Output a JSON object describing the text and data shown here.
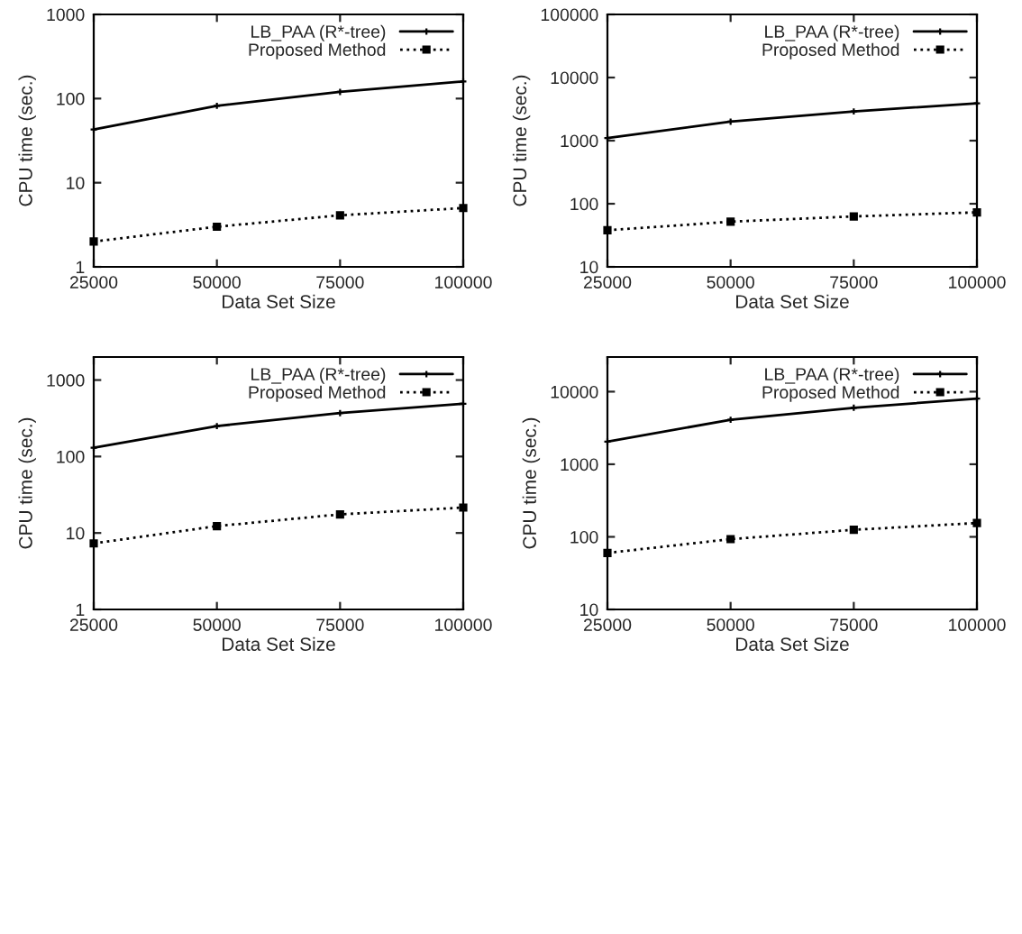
{
  "chart_data": [
    {
      "type": "line",
      "xlabel": "Data Set Size",
      "ylabel": "CPU time (sec.)",
      "x": [
        25000,
        50000,
        75000,
        100000
      ],
      "xlim": [
        25000,
        100000
      ],
      "xticks": [
        25000,
        50000,
        75000,
        100000
      ],
      "ylim": [
        1,
        1000
      ],
      "yticks": [
        1,
        10,
        100,
        1000
      ],
      "log": "y",
      "grid": false,
      "legend": "top right",
      "series": [
        {
          "name": "LB_PAA (R*-tree)",
          "color": "#000000",
          "marker": "cross",
          "line_style": "solid",
          "values": [
            43,
            82,
            120,
            160
          ]
        },
        {
          "name": "Proposed Method",
          "color": "#000000",
          "marker": "square",
          "line_style": "dotted",
          "values": [
            2.0,
            3.0,
            4.1,
            5.0
          ]
        }
      ]
    },
    {
      "type": "line",
      "xlabel": "Data Set Size",
      "ylabel": "CPU time (sec.)",
      "x": [
        25000,
        50000,
        75000,
        100000
      ],
      "xlim": [
        25000,
        100000
      ],
      "xticks": [
        25000,
        50000,
        75000,
        100000
      ],
      "ylim": [
        10,
        100000
      ],
      "yticks": [
        10,
        100,
        1000,
        10000,
        100000
      ],
      "log": "y",
      "grid": false,
      "legend": "top right",
      "series": [
        {
          "name": "LB_PAA (R*-tree)",
          "color": "#000000",
          "marker": "cross",
          "line_style": "solid",
          "values": [
            1100,
            2000,
            2900,
            3900
          ]
        },
        {
          "name": "Proposed Method",
          "color": "#000000",
          "marker": "square",
          "line_style": "dotted",
          "values": [
            38,
            52,
            63,
            73
          ]
        }
      ]
    },
    {
      "type": "line",
      "xlabel": "Data Set Size",
      "ylabel": "CPU time (sec.)",
      "x": [
        25000,
        50000,
        75000,
        100000
      ],
      "xlim": [
        25000,
        100000
      ],
      "xticks": [
        25000,
        50000,
        75000,
        100000
      ],
      "ylim": [
        1,
        2000
      ],
      "yticks": [
        1,
        10,
        100,
        1000
      ],
      "log": "y",
      "grid": false,
      "legend": "top right",
      "series": [
        {
          "name": "LB_PAA (R*-tree)",
          "color": "#000000",
          "marker": "cross",
          "line_style": "solid",
          "values": [
            130,
            250,
            370,
            490
          ]
        },
        {
          "name": "Proposed Method",
          "color": "#000000",
          "marker": "square",
          "line_style": "dotted",
          "values": [
            7.3,
            12.3,
            17.5,
            21.5
          ]
        }
      ]
    },
    {
      "type": "line",
      "xlabel": "Data Set Size",
      "ylabel": "CPU time (sec.)",
      "x": [
        25000,
        50000,
        75000,
        100000
      ],
      "xlim": [
        25000,
        100000
      ],
      "xticks": [
        25000,
        50000,
        75000,
        100000
      ],
      "ylim": [
        10,
        30000
      ],
      "yticks": [
        10,
        100,
        1000,
        10000
      ],
      "log": "y",
      "grid": false,
      "legend": "top right",
      "series": [
        {
          "name": "LB_PAA (R*-tree)",
          "color": "#000000",
          "marker": "cross",
          "line_style": "solid",
          "values": [
            2050,
            4100,
            6000,
            8000
          ]
        },
        {
          "name": "Proposed Method",
          "color": "#000000",
          "marker": "square",
          "line_style": "dotted",
          "values": [
            60,
            93,
            125,
            155
          ]
        }
      ]
    }
  ]
}
